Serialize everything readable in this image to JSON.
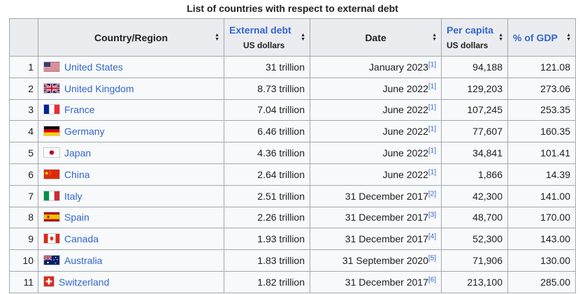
{
  "caption": "List of countries with respect to external debt",
  "headers": {
    "country": "Country/Region",
    "debt": "External debt",
    "debt_unit": "US dollars",
    "date": "Date",
    "per_capita": "Per capita",
    "per_capita_unit": "US dollars",
    "gdp": "% of GDP"
  },
  "rows": [
    {
      "n": "1",
      "flag": "flag-us-icon",
      "country": "United States",
      "debt": "31 trillion",
      "date": "January 2023",
      "ref": "[1]",
      "per_capita": "94,188",
      "gdp": "121.08"
    },
    {
      "n": "2",
      "flag": "flag-uk-icon",
      "country": "United Kingdom",
      "debt": "8.73 trillion",
      "date": "June 2022",
      "ref": "[1]",
      "per_capita": "129,203",
      "gdp": "273.06"
    },
    {
      "n": "3",
      "flag": "flag-fr-icon",
      "country": "France",
      "debt": "7.04 trillion",
      "date": "June 2022",
      "ref": "[1]",
      "per_capita": "107,245",
      "gdp": "253.35"
    },
    {
      "n": "4",
      "flag": "flag-de-icon",
      "country": "Germany",
      "debt": "6.46 trillion",
      "date": "June 2022",
      "ref": "[1]",
      "per_capita": "77,607",
      "gdp": "160.35"
    },
    {
      "n": "5",
      "flag": "flag-jp-icon",
      "country": "Japan",
      "debt": "4.36 trillion",
      "date": "June 2022",
      "ref": "[1]",
      "per_capita": "34,841",
      "gdp": "101.41"
    },
    {
      "n": "6",
      "flag": "flag-cn-icon",
      "country": "China",
      "debt": "2.64 trillion",
      "date": "June 2022",
      "ref": "[1]",
      "per_capita": "1,866",
      "gdp": "14.39"
    },
    {
      "n": "7",
      "flag": "flag-it-icon",
      "country": "Italy",
      "debt": "2.51 trillion",
      "date": "31 December 2017",
      "ref": "[2]",
      "per_capita": "42,300",
      "gdp": "141.00"
    },
    {
      "n": "8",
      "flag": "flag-es-icon",
      "country": "Spain",
      "debt": "2.26 trillion",
      "date": "31 December 2017",
      "ref": "[3]",
      "per_capita": "48,700",
      "gdp": "170.00"
    },
    {
      "n": "9",
      "flag": "flag-ca-icon",
      "country": "Canada",
      "debt": "1.93 trillion",
      "date": "31 December 2017",
      "ref": "[4]",
      "per_capita": "52,300",
      "gdp": "143.00"
    },
    {
      "n": "10",
      "flag": "flag-au-icon",
      "country": "Australia",
      "debt": "1.83 trillion",
      "date": "31 September 2020",
      "ref": "[5]",
      "per_capita": "71,906",
      "gdp": "130.00"
    },
    {
      "n": "11",
      "flag": "flag-ch-icon",
      "country": "Switzerland",
      "debt": "1.82 trillion",
      "date": "31 December 2017",
      "ref": "[6]",
      "per_capita": "213,100",
      "gdp": "285.00"
    }
  ]
}
